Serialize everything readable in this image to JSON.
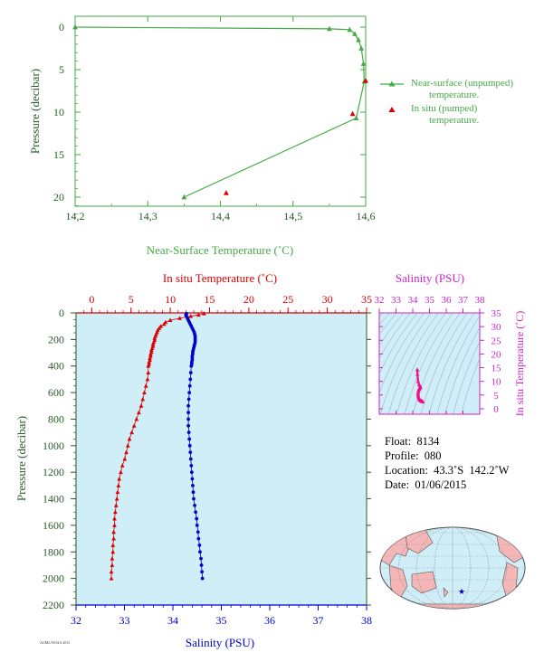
{
  "top_chart": {
    "xlabel": "Near-Surface Temperature (˚C)",
    "ylabel": "Pressure (decibar)",
    "legend": {
      "line_label_1": "Near-surface (unpumped)",
      "line_label_2": "temperature.",
      "point_label_1": "In situ (pumped)",
      "point_label_2": "temperature."
    }
  },
  "main_chart": {
    "top_axis_label": "In situ Temperature (˚C)",
    "bottom_axis_label": "Salinity (PSU)",
    "ylabel": "Pressure (decibar)"
  },
  "inset_chart": {
    "top_axis_label": "Salinity (PSU)",
    "right_axis_label": "In situ Temperature (˚C)"
  },
  "info": {
    "float": "Float:  8134",
    "profile": "Profile:  080",
    "location": "Location:  43.3˚S  142.2˚W",
    "date": "Date:  01/06/2015"
  },
  "credit": "AOML/NOAA 2015",
  "colors": {
    "near_surface": "#44aa44",
    "temperature": "#dd0000",
    "salinity": "#0000cc",
    "inset": "#cc22cc",
    "plot_bg": "#d0eef8",
    "land": "#f4b6b6",
    "ocean": "#d0eef8"
  },
  "chart_data": [
    {
      "type": "line",
      "title": "",
      "x_axis": {
        "range": [
          14.2,
          14.6
        ],
        "ticks": [
          14.2,
          14.3,
          14.4,
          14.5,
          14.6
        ],
        "tick_labels": [
          "14,2",
          "14,3",
          "14,4",
          "14,5",
          "14,6"
        ]
      },
      "y_axis": {
        "range": [
          0,
          22
        ],
        "inverted": true,
        "ticks": [
          0,
          5,
          10,
          15,
          20
        ]
      },
      "series": [
        {
          "name": "Near-surface (unpumped) temperature.",
          "kind": "line",
          "points": [
            [
              14.2,
              0.0
            ],
            [
              14.55,
              0.2
            ],
            [
              14.578,
              0.3
            ],
            [
              14.585,
              0.8
            ],
            [
              14.59,
              1.5
            ],
            [
              14.594,
              2.5
            ],
            [
              14.597,
              4.3
            ],
            [
              14.598,
              6.4
            ],
            [
              14.587,
              10.7
            ],
            [
              14.35,
              20.0
            ]
          ]
        },
        {
          "name": "In situ (pumped) temperature.",
          "kind": "scatter",
          "points": [
            [
              14.6,
              6.3
            ],
            [
              14.582,
              10.2
            ],
            [
              14.408,
              19.5
            ]
          ]
        }
      ]
    },
    {
      "type": "scatter",
      "title": "",
      "y_axis": {
        "range": [
          0,
          2200
        ],
        "inverted": true,
        "ticks": [
          0,
          200,
          400,
          600,
          800,
          1000,
          1200,
          1400,
          1600,
          1800,
          2000,
          2200
        ]
      },
      "top_axis": {
        "label": "In situ Temperature (˚C)",
        "range": [
          -2,
          35
        ],
        "ticks": [
          0,
          5,
          10,
          15,
          20,
          25,
          30,
          35
        ]
      },
      "bottom_axis": {
        "label": "Salinity (PSU)",
        "range": [
          32,
          38
        ],
        "ticks": [
          32,
          33,
          34,
          35,
          36,
          37,
          38
        ]
      },
      "series": [
        {
          "name": "Temperature",
          "axis": "top",
          "points": [
            [
              14.3,
              5
            ],
            [
              13.6,
              15
            ],
            [
              12.6,
              25
            ],
            [
              11.2,
              40
            ],
            [
              10.0,
              55
            ],
            [
              9.4,
              70
            ],
            [
              9.2,
              85
            ],
            [
              8.8,
              100
            ],
            [
              8.6,
              115
            ],
            [
              8.4,
              130
            ],
            [
              8.3,
              145
            ],
            [
              8.2,
              160
            ],
            [
              8.1,
              175
            ],
            [
              8.0,
              190
            ],
            [
              8.0,
              205
            ],
            [
              7.9,
              220
            ],
            [
              7.8,
              235
            ],
            [
              7.8,
              250
            ],
            [
              7.7,
              265
            ],
            [
              7.6,
              280
            ],
            [
              7.6,
              295
            ],
            [
              7.5,
              310
            ],
            [
              7.5,
              325
            ],
            [
              7.4,
              340
            ],
            [
              7.4,
              355
            ],
            [
              7.3,
              370
            ],
            [
              7.3,
              385
            ],
            [
              7.2,
              400
            ],
            [
              7.2,
              450
            ],
            [
              7.1,
              500
            ],
            [
              6.9,
              550
            ],
            [
              6.7,
              600
            ],
            [
              6.5,
              650
            ],
            [
              6.3,
              700
            ],
            [
              6.0,
              750
            ],
            [
              5.7,
              800
            ],
            [
              5.4,
              850
            ],
            [
              5.1,
              900
            ],
            [
              4.8,
              950
            ],
            [
              4.6,
              1000
            ],
            [
              4.4,
              1050
            ],
            [
              4.2,
              1100
            ],
            [
              3.9,
              1150
            ],
            [
              3.7,
              1200
            ],
            [
              3.5,
              1250
            ],
            [
              3.4,
              1300
            ],
            [
              3.3,
              1350
            ],
            [
              3.2,
              1400
            ],
            [
              3.1,
              1450
            ],
            [
              3.0,
              1500
            ],
            [
              2.9,
              1550
            ],
            [
              2.9,
              1600
            ],
            [
              2.8,
              1650
            ],
            [
              2.8,
              1700
            ],
            [
              2.7,
              1750
            ],
            [
              2.7,
              1800
            ],
            [
              2.6,
              1850
            ],
            [
              2.6,
              1900
            ],
            [
              2.5,
              1950
            ],
            [
              2.5,
              2000
            ]
          ]
        },
        {
          "name": "Salinity",
          "axis": "bottom",
          "points": [
            [
              34.28,
              5
            ],
            [
              34.27,
              15
            ],
            [
              34.28,
              25
            ],
            [
              34.3,
              40
            ],
            [
              34.32,
              55
            ],
            [
              34.34,
              70
            ],
            [
              34.36,
              85
            ],
            [
              34.38,
              100
            ],
            [
              34.4,
              115
            ],
            [
              34.42,
              130
            ],
            [
              34.44,
              145
            ],
            [
              34.45,
              160
            ],
            [
              34.46,
              175
            ],
            [
              34.46,
              190
            ],
            [
              34.46,
              205
            ],
            [
              34.46,
              220
            ],
            [
              34.45,
              235
            ],
            [
              34.44,
              250
            ],
            [
              34.43,
              265
            ],
            [
              34.42,
              280
            ],
            [
              34.41,
              295
            ],
            [
              34.41,
              310
            ],
            [
              34.4,
              325
            ],
            [
              34.4,
              340
            ],
            [
              34.4,
              355
            ],
            [
              34.39,
              370
            ],
            [
              34.39,
              385
            ],
            [
              34.38,
              400
            ],
            [
              34.37,
              450
            ],
            [
              34.36,
              500
            ],
            [
              34.35,
              550
            ],
            [
              34.34,
              600
            ],
            [
              34.33,
              650
            ],
            [
              34.32,
              700
            ],
            [
              34.32,
              750
            ],
            [
              34.32,
              800
            ],
            [
              34.32,
              850
            ],
            [
              34.33,
              900
            ],
            [
              34.34,
              950
            ],
            [
              34.35,
              1000
            ],
            [
              34.36,
              1050
            ],
            [
              34.37,
              1100
            ],
            [
              34.38,
              1150
            ],
            [
              34.39,
              1200
            ],
            [
              34.4,
              1250
            ],
            [
              34.41,
              1300
            ],
            [
              34.42,
              1350
            ],
            [
              34.43,
              1400
            ],
            [
              34.45,
              1450
            ],
            [
              34.47,
              1500
            ],
            [
              34.49,
              1550
            ],
            [
              34.5,
              1600
            ],
            [
              34.52,
              1650
            ],
            [
              34.53,
              1700
            ],
            [
              34.55,
              1750
            ],
            [
              34.56,
              1800
            ],
            [
              34.58,
              1850
            ],
            [
              34.59,
              1900
            ],
            [
              34.6,
              1950
            ],
            [
              34.61,
              2000
            ]
          ]
        }
      ]
    },
    {
      "type": "scatter",
      "title": "",
      "x_axis": {
        "label": "Salinity (PSU)",
        "range": [
          32,
          38
        ],
        "ticks": [
          32,
          33,
          34,
          35,
          36,
          37,
          38
        ]
      },
      "y_axis": {
        "label": "In situ Temperature (˚C)",
        "range": [
          -2,
          35
        ],
        "ticks": [
          0,
          5,
          10,
          15,
          20,
          25,
          30,
          35
        ]
      },
      "grid": "density contours",
      "series": [
        {
          "name": "T-S",
          "points": [
            [
              34.27,
              14.3
            ],
            [
              34.28,
              12.6
            ],
            [
              34.32,
              10.0
            ],
            [
              34.38,
              8.8
            ],
            [
              34.44,
              8.3
            ],
            [
              34.46,
              8.0
            ],
            [
              34.44,
              7.7
            ],
            [
              34.41,
              7.5
            ],
            [
              34.39,
              7.3
            ],
            [
              34.37,
              7.1
            ],
            [
              34.35,
              6.7
            ],
            [
              34.33,
              6.3
            ],
            [
              34.32,
              5.7
            ],
            [
              34.32,
              5.1
            ],
            [
              34.33,
              4.6
            ],
            [
              34.35,
              4.2
            ],
            [
              34.37,
              3.7
            ],
            [
              34.4,
              3.4
            ],
            [
              34.43,
              3.2
            ],
            [
              34.47,
              3.0
            ],
            [
              34.5,
              2.9
            ],
            [
              34.53,
              2.8
            ],
            [
              34.56,
              2.7
            ],
            [
              34.59,
              2.6
            ],
            [
              34.61,
              2.5
            ]
          ]
        }
      ]
    }
  ],
  "map": {
    "float_marker": "star-icon"
  }
}
